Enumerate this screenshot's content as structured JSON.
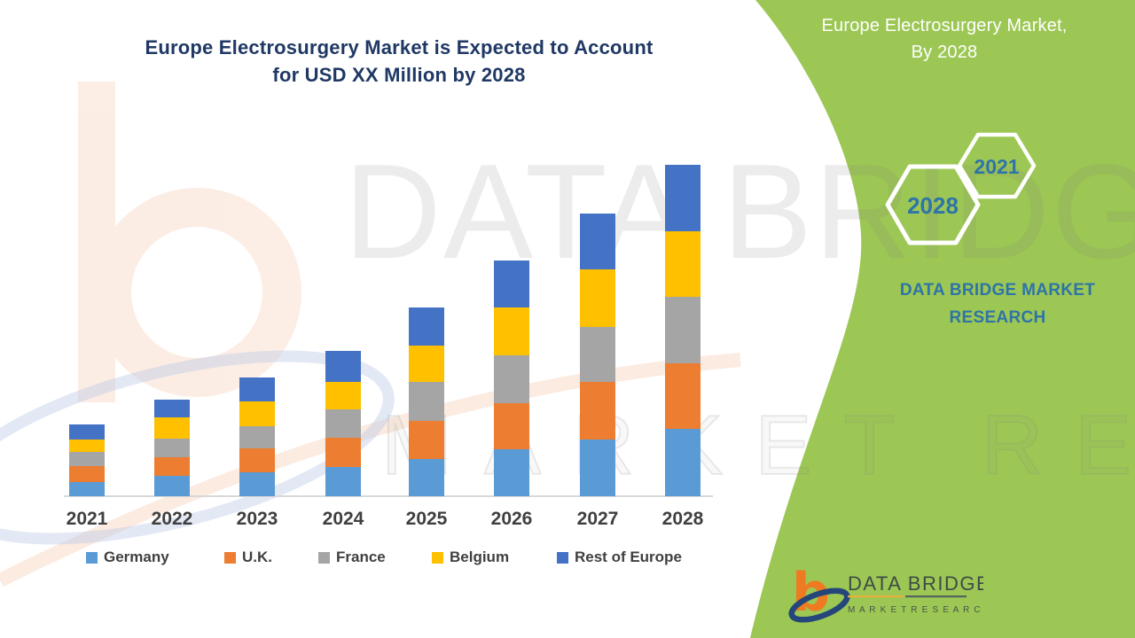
{
  "main_title": {
    "line1": "Europe Electrosurgery Market is Expected to Account",
    "line2": "for USD XX Million by 2028",
    "color": "#1F3864"
  },
  "side_panel": {
    "bg_color": "#9CC754",
    "title_line1": "Europe Electrosurgery Market,",
    "title_line2": "By 2028",
    "hexagons": [
      {
        "label": "2028"
      },
      {
        "label": "2021"
      }
    ],
    "brand_line1": "DATA BRIDGE MARKET",
    "brand_line2": "RESEARCH",
    "text_color": "#2E74A8"
  },
  "watermark": {
    "line1": "DATA BRIDGE",
    "line2": "MARKET RESEARCH"
  },
  "footer_logo": {
    "brand": "DATA BRIDGE",
    "sub": "M A R K E T   R E S E A R C H"
  },
  "chart_data": {
    "type": "bar",
    "stacked": true,
    "title": "Europe Electrosurgery Market is Expected to Account for USD XX Million by 2028",
    "xlabel": "",
    "ylabel": "",
    "categories": [
      "2021",
      "2022",
      "2023",
      "2024",
      "2025",
      "2026",
      "2027",
      "2028"
    ],
    "series": [
      {
        "name": "Germany",
        "color": "#5B9BD5",
        "values": [
          16,
          23,
          27,
          33,
          42,
          53,
          64,
          76
        ]
      },
      {
        "name": "U.K.",
        "color": "#ED7D31",
        "values": [
          18,
          21,
          27,
          33,
          43,
          52,
          65,
          74
        ]
      },
      {
        "name": "France",
        "color": "#A5A5A5",
        "values": [
          16,
          21,
          25,
          32,
          44,
          54,
          62,
          75
        ]
      },
      {
        "name": "Belgium",
        "color": "#FFC000",
        "values": [
          14,
          24,
          28,
          31,
          41,
          54,
          65,
          74
        ]
      },
      {
        "name": "Rest of Europe",
        "color": "#4472C4",
        "values": [
          17,
          20,
          27,
          35,
          43,
          53,
          63,
          75
        ]
      }
    ],
    "totals": [
      81,
      109,
      134,
      164,
      213,
      266,
      319,
      374
    ],
    "ylim": [
      0,
      400
    ],
    "value_note": "no numeric axis shown; values are relative units (USD XX Million placeholder)",
    "grid": false,
    "legend_position": "bottom",
    "axis_line_color": "#D8D8D8",
    "label_color": "#3F3F3F"
  }
}
